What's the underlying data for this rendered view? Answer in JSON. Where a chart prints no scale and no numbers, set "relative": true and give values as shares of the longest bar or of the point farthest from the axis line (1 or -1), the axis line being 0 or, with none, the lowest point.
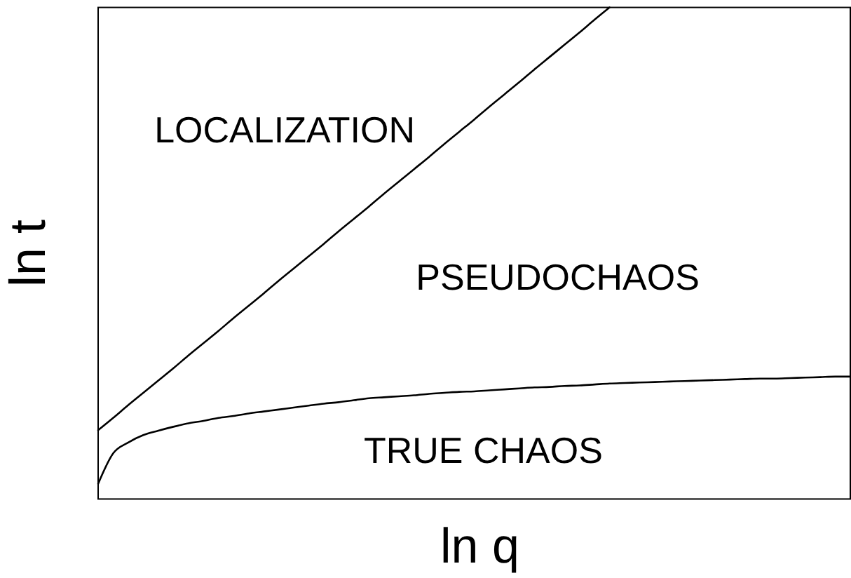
{
  "chart_data": {
    "type": "line",
    "relative": true,
    "xlabel": "ln q",
    "ylabel": "ln t",
    "categories": [
      null,
      null,
      null,
      null,
      null,
      null,
      null,
      null,
      null,
      null,
      null,
      null,
      null,
      null,
      null,
      null,
      null,
      null,
      null,
      null,
      null,
      null,
      null,
      null,
      null,
      null,
      null,
      null,
      null,
      null,
      null,
      null,
      null,
      null,
      null,
      null,
      null,
      null,
      null,
      null,
      null,
      null,
      null,
      null,
      null,
      null,
      null,
      null,
      null,
      null,
      null
    ],
    "annotations": [
      "LOCALIZATION",
      "PSEUDOCHAOS",
      "TRUE CHAOS"
    ],
    "series": [
      {
        "color": "#000000",
        "values": [
          0.14,
          0.165,
          0.191,
          0.216,
          0.241,
          0.266,
          0.292,
          0.317,
          0.342,
          0.368,
          0.393,
          0.418,
          0.444,
          0.469,
          0.494,
          0.519,
          0.545,
          0.57,
          0.595,
          0.621,
          0.646,
          0.671,
          0.696,
          0.722,
          0.747,
          0.772,
          0.798,
          0.823,
          0.848,
          0.874,
          0.899,
          0.924,
          0.949,
          0.975,
          1.0,
          null,
          null,
          null,
          null,
          null,
          null,
          null,
          null,
          null,
          null,
          null,
          null,
          null,
          null,
          null,
          null
        ]
      },
      {
        "color": "#000000",
        "values": [
          0.031,
          0.093,
          0.115,
          0.13,
          0.139,
          0.147,
          0.154,
          0.159,
          0.165,
          0.169,
          0.174,
          0.178,
          0.182,
          0.186,
          0.19,
          0.194,
          0.197,
          0.201,
          0.205,
          0.207,
          0.209,
          0.211,
          0.214,
          0.216,
          0.218,
          0.219,
          0.221,
          0.223,
          0.225,
          0.227,
          0.228,
          0.23,
          0.231,
          0.233,
          0.235,
          0.236,
          0.237,
          0.238,
          0.239,
          0.24,
          0.241,
          0.242,
          0.243,
          0.244,
          0.245,
          0.245,
          0.246,
          0.247,
          0.248,
          0.249,
          0.249
        ]
      }
    ]
  }
}
